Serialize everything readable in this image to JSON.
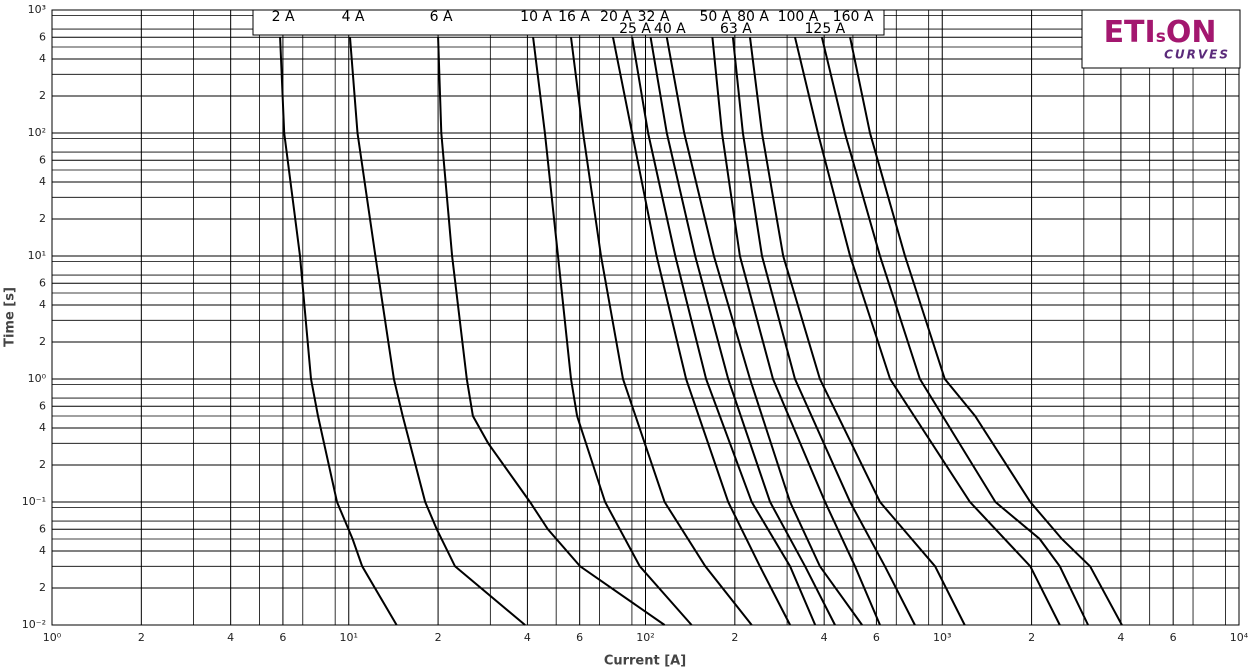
{
  "chart_data": {
    "type": "line",
    "x_label": "Current [A]",
    "y_label": "Time [s]",
    "log_x": true,
    "log_y": true,
    "grid": true,
    "xlim": [
      1,
      10000
    ],
    "xticks": [
      {
        "value": 1,
        "label": "10⁰"
      },
      2,
      4,
      6,
      {
        "value": 10,
        "label": "10¹"
      },
      {
        "value": 20,
        "label": "2"
      },
      {
        "value": 40,
        "label": "4"
      },
      {
        "value": 60,
        "label": "6"
      },
      {
        "value": 100,
        "label": "10²"
      },
      {
        "value": 200,
        "label": "2"
      },
      {
        "value": 400,
        "label": "4"
      },
      {
        "value": 600,
        "label": "6"
      },
      {
        "value": 1000,
        "label": "10³"
      },
      {
        "value": 2000,
        "label": "2"
      },
      {
        "value": 4000,
        "label": "4"
      },
      {
        "value": 6000,
        "label": "6"
      },
      {
        "value": 10000,
        "label": "10⁴"
      }
    ],
    "ylim": [
      0.01,
      1000
    ],
    "yticks": [
      {
        "value": 0.01,
        "label": "10⁻²"
      },
      {
        "value": 0.02,
        "label": "2"
      },
      {
        "value": 0.04,
        "label": "4"
      },
      {
        "value": 0.06,
        "label": "6"
      },
      {
        "value": 0.1,
        "label": "10⁻¹"
      },
      {
        "value": 0.2,
        "label": "2"
      },
      {
        "value": 0.4,
        "label": "4"
      },
      {
        "value": 0.6,
        "label": "6"
      },
      {
        "value": 1,
        "label": "10⁰"
      },
      2,
      4,
      6,
      {
        "value": 10,
        "label": "10¹"
      },
      {
        "value": 20,
        "label": "2"
      },
      {
        "value": 40,
        "label": "4"
      },
      {
        "value": 60,
        "label": "6"
      },
      {
        "value": 100,
        "label": "10²"
      },
      {
        "value": 200,
        "label": "2"
      },
      {
        "value": 400,
        "label": "4"
      },
      {
        "value": 600,
        "label": "6"
      },
      {
        "value": 1000,
        "label": "10³"
      }
    ],
    "series": [
      {
        "name": "2 A",
        "color": "#000000",
        "x": [
          5.87,
          6.06,
          6.85,
          7.46,
          7.88,
          9.13,
          10.3,
          11.1,
          14.5
        ],
        "values": [
          600,
          100,
          10,
          1,
          0.5,
          0.1,
          0.05,
          0.03,
          0.01
        ]
      },
      {
        "name": "4 A",
        "color": "#000000",
        "x": [
          10.1,
          10.7,
          12.3,
          14.2,
          15.2,
          18.1,
          19.8,
          22.8,
          39.3
        ],
        "values": [
          600,
          100,
          10,
          1,
          0.5,
          0.1,
          0.06,
          0.03,
          0.01
        ]
      },
      {
        "name": "6 A",
        "color": "#000000",
        "x": [
          20.0,
          20.5,
          22.3,
          25.0,
          26.2,
          29.5,
          40.8,
          46.9,
          60.2,
          116
        ],
        "values": [
          600,
          100,
          10,
          1,
          0.5,
          0.3,
          0.1,
          0.06,
          0.03,
          0.01
        ]
      },
      {
        "name": "10 A",
        "color": "#000000",
        "x": [
          41.8,
          45.8,
          50.7,
          56.1,
          58.8,
          73.1,
          95.7,
          143
        ],
        "values": [
          600,
          100,
          10,
          1,
          0.5,
          0.1,
          0.03,
          0.01
        ]
      },
      {
        "name": "16 A",
        "color": "#000000",
        "x": [
          56.1,
          61.6,
          70.8,
          84.0,
          116,
          159,
          228
        ],
        "values": [
          600,
          100,
          10,
          1,
          0.1,
          0.03,
          0.01
        ]
      },
      {
        "name": "20 A",
        "color": "#000000",
        "x": [
          77.7,
          90.1,
          109,
          137,
          190,
          243,
          307
        ],
        "values": [
          600,
          100,
          10,
          1,
          0.1,
          0.03,
          0.01
        ]
      },
      {
        "name": "25 A",
        "color": "#000000",
        "x": [
          90.1,
          102,
          126,
          160,
          228,
          307,
          373
        ],
        "values": [
          600,
          100,
          10,
          1,
          0.1,
          0.03,
          0.01
        ]
      },
      {
        "name": "32 A",
        "color": "#000000",
        "x": [
          104,
          118,
          147,
          190,
          263,
          345,
          435
        ],
        "values": [
          600,
          100,
          10,
          1,
          0.1,
          0.03,
          0.01
        ]
      },
      {
        "name": "40 A",
        "color": "#000000",
        "x": [
          118,
          135,
          170,
          225,
          307,
          387,
          537
        ],
        "values": [
          600,
          100,
          10,
          1,
          0.1,
          0.03,
          0.01
        ]
      },
      {
        "name": "50 A",
        "color": "#000000",
        "x": [
          168,
          181,
          208,
          269,
          403,
          508,
          617
        ],
        "values": [
          600,
          100,
          10,
          1,
          0.1,
          0.03,
          0.01
        ]
      },
      {
        "name": "63 A",
        "color": "#000000",
        "x": [
          197,
          213,
          247,
          319,
          489,
          641,
          809
        ],
        "values": [
          600,
          100,
          10,
          1,
          0.1,
          0.03,
          0.01
        ]
      },
      {
        "name": "80 A",
        "color": "#000000",
        "x": [
          225,
          247,
          291,
          387,
          617,
          946,
          1190
        ],
        "values": [
          600,
          100,
          10,
          1,
          0.1,
          0.03,
          0.01
        ]
      },
      {
        "name": "100 A",
        "color": "#000000",
        "x": [
          319,
          381,
          489,
          667,
          1240,
          1980,
          2490
        ],
        "values": [
          600,
          100,
          10,
          1,
          0.1,
          0.03,
          0.01
        ]
      },
      {
        "name": "125 A",
        "color": "#000000",
        "x": [
          393,
          470,
          617,
          841,
          1510,
          2130,
          2490,
          3100
        ],
        "values": [
          600,
          100,
          10,
          1,
          0.1,
          0.05,
          0.03,
          0.01
        ]
      },
      {
        "name": "160 A",
        "color": "#000000",
        "x": [
          489,
          571,
          749,
          1020,
          1290,
          1980,
          2530,
          3150,
          4030
        ],
        "values": [
          600,
          100,
          10,
          1,
          0.5,
          0.1,
          0.05,
          0.03,
          0.01
        ]
      }
    ]
  },
  "logo": {
    "part1": "ETI",
    "part2": "s",
    "part3": "ON",
    "sub": "CURVES"
  }
}
